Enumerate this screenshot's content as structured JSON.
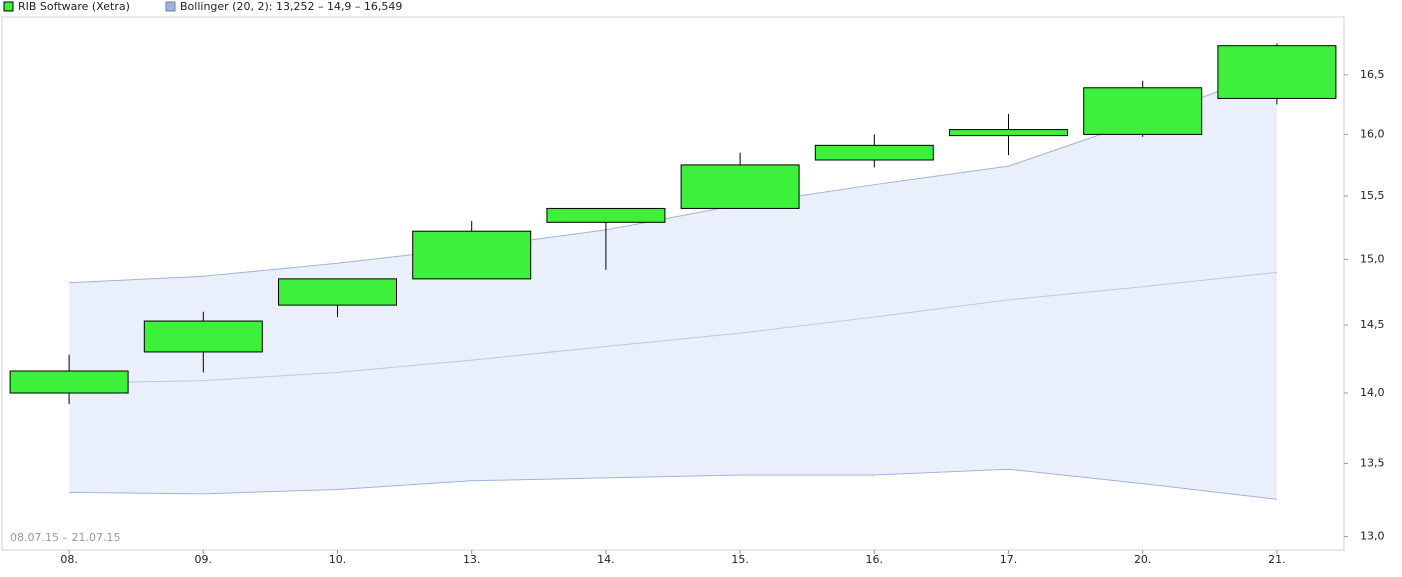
{
  "chart_data": {
    "type": "candlestick",
    "date_range": "08.07.15 – 21.07.15",
    "categories": [
      "08.",
      "09.",
      "10.",
      "13.",
      "14.",
      "15.",
      "16.",
      "17.",
      "20.",
      "21."
    ],
    "series": [
      {
        "name": "RIB Software (Xetra)",
        "color": "#3cf03c",
        "open": [
          14.0,
          14.3,
          14.65,
          14.85,
          15.29,
          15.4,
          15.79,
          15.99,
          16.0,
          16.3
        ],
        "high": [
          14.28,
          14.6,
          14.85,
          15.3,
          15.4,
          15.85,
          16.0,
          16.17,
          16.45,
          16.77
        ],
        "low": [
          13.92,
          14.15,
          14.56,
          14.85,
          14.92,
          15.4,
          15.73,
          15.83,
          15.98,
          16.25
        ],
        "close": [
          14.16,
          14.53,
          14.85,
          15.22,
          15.4,
          15.75,
          15.91,
          16.04,
          16.39,
          16.75
        ]
      },
      {
        "name": "Bollinger (20, 2): 13,252 – 14,9 – 16,549",
        "color": "#9fb3dd",
        "band_color": "#eaf0fb",
        "middle_color": "#b9c9ee",
        "upper": [
          14.82,
          14.87,
          14.97,
          15.09,
          15.23,
          15.43,
          15.59,
          15.74,
          16.12,
          16.549
        ],
        "middle": [
          14.07,
          14.09,
          14.15,
          14.24,
          14.34,
          14.44,
          14.56,
          14.69,
          14.79,
          14.9
        ],
        "lower": [
          13.3,
          13.29,
          13.32,
          13.38,
          13.4,
          13.42,
          13.42,
          13.46,
          13.36,
          13.252
        ]
      }
    ],
    "log_scale": true,
    "ylim": [
      12.91,
      17.0
    ],
    "yticks": [
      {
        "value": 13.0,
        "label": "13,0"
      },
      {
        "value": 13.5,
        "label": "13,5"
      },
      {
        "value": 14.0,
        "label": "14,0"
      },
      {
        "value": 14.5,
        "label": "14,5"
      },
      {
        "value": 15.0,
        "label": "15,0"
      },
      {
        "value": 15.5,
        "label": "15,5"
      },
      {
        "value": 16.0,
        "label": "16,0"
      },
      {
        "value": 16.5,
        "label": "16,5"
      }
    ]
  }
}
